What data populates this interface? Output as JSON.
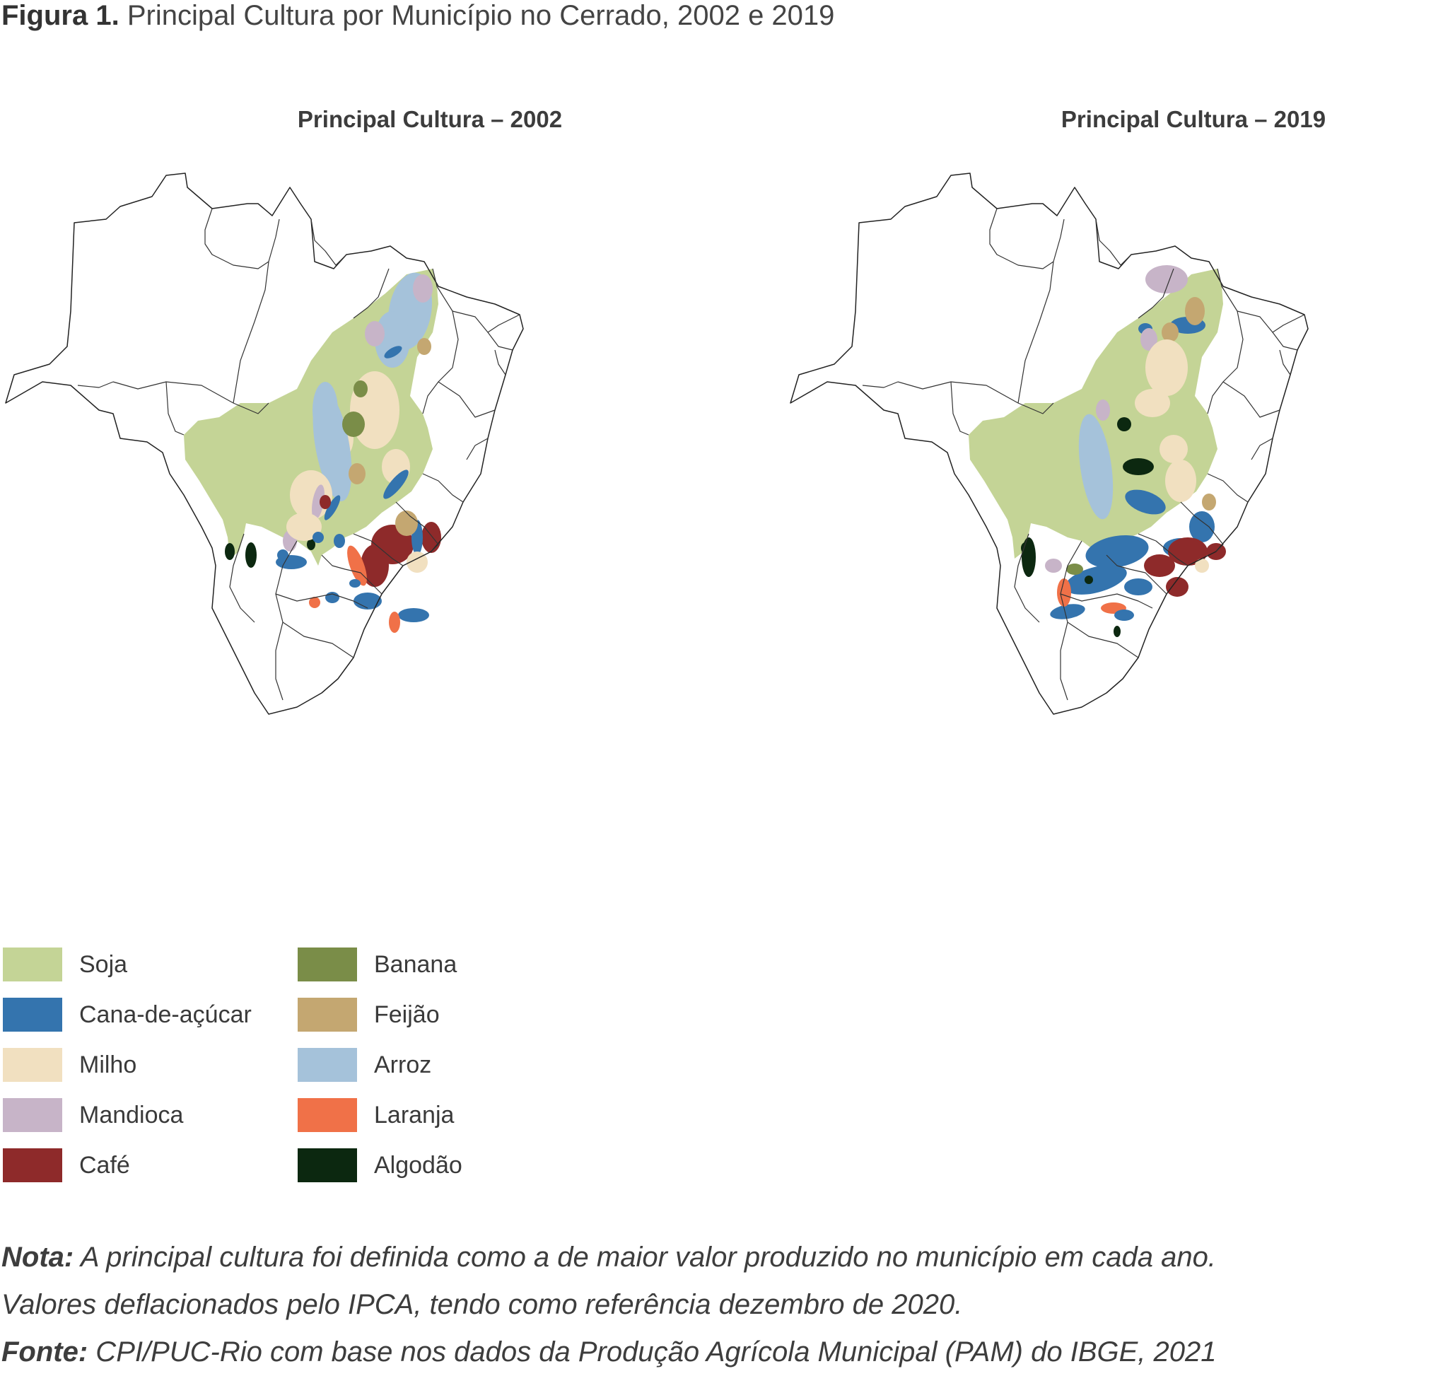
{
  "figure": {
    "label": "Figura 1.",
    "title": "Principal Cultura por Município no Cerrado, 2002 e 2019"
  },
  "maps": [
    {
      "title": "Principal Cultura – 2002",
      "year": "2002"
    },
    {
      "title": "Principal Cultura – 2019",
      "year": "2019"
    }
  ],
  "legend": [
    {
      "label": "Soja",
      "color": "#c4d496"
    },
    {
      "label": "Cana-de-açúcar",
      "color": "#3474ae"
    },
    {
      "label": "Milho",
      "color": "#f1e0c0"
    },
    {
      "label": "Mandioca",
      "color": "#c7b4c8"
    },
    {
      "label": "Café",
      "color": "#8e2a2a"
    },
    {
      "label": "Banana",
      "color": "#7a8d48"
    },
    {
      "label": "Feijão",
      "color": "#c4a771"
    },
    {
      "label": "Arroz",
      "color": "#a5c2da"
    },
    {
      "label": "Laranja",
      "color": "#f07148"
    },
    {
      "label": "Algodão",
      "color": "#0c2810"
    }
  ],
  "notes": {
    "nota_label": "Nota:",
    "nota_text": " A principal cultura foi definida como a de maior valor produzido no município em cada ano.",
    "nota_text2": "Valores deflacionados pelo IPCA, tendo como referência dezembro de 2020.",
    "fonte_label": "Fonte:",
    "fonte_text": " CPI/PUC-Rio com base nos dados da Produção Agrícola Municipal (PAM) do IBGE, 2021"
  }
}
